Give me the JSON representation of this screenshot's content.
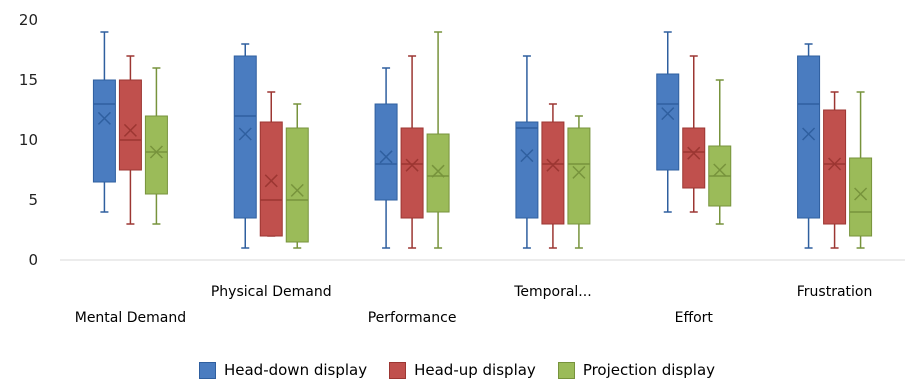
{
  "chart_data": {
    "type": "box",
    "categories": [
      "Mental Demand",
      "Physical Demand",
      "Performance",
      "Temporal...",
      "Effort",
      "Frustration"
    ],
    "ylim": [
      0,
      20
    ],
    "yticks": [
      0,
      5,
      10,
      15,
      20
    ],
    "grid": false,
    "legend_position": "bottom",
    "series": [
      {
        "name": "Head-down display",
        "color": "#4a7cc0",
        "stroke": "#2f5f9f",
        "boxes": [
          {
            "min": 4,
            "q1": 6.5,
            "median": 13,
            "q3": 15,
            "max": 19,
            "mean": 11.8
          },
          {
            "min": 1,
            "q1": 3.5,
            "median": 12,
            "q3": 17,
            "max": 18,
            "mean": 10.5
          },
          {
            "min": 1,
            "q1": 5,
            "median": 8,
            "q3": 13,
            "max": 16,
            "mean": 8.6
          },
          {
            "min": 1,
            "q1": 3.5,
            "median": 11,
            "q3": 11.5,
            "max": 17,
            "mean": 8.7
          },
          {
            "min": 4,
            "q1": 7.5,
            "median": 13,
            "q3": 15.5,
            "max": 19,
            "mean": 12.2
          },
          {
            "min": 1,
            "q1": 3.5,
            "median": 13,
            "q3": 17,
            "max": 18,
            "mean": 10.5
          }
        ]
      },
      {
        "name": "Head-up display",
        "color": "#c0504d",
        "stroke": "#9c3632",
        "boxes": [
          {
            "min": 3,
            "q1": 7.5,
            "median": 10,
            "q3": 15,
            "max": 17,
            "mean": 10.8
          },
          {
            "min": 2,
            "q1": 2,
            "median": 5,
            "q3": 11.5,
            "max": 14,
            "mean": 6.6
          },
          {
            "min": 1,
            "q1": 3.5,
            "median": 8,
            "q3": 11,
            "max": 17,
            "mean": 7.9
          },
          {
            "min": 1,
            "q1": 3,
            "median": 8,
            "q3": 11.5,
            "max": 13,
            "mean": 7.9
          },
          {
            "min": 4,
            "q1": 6,
            "median": 9,
            "q3": 11,
            "max": 17,
            "mean": 8.9
          },
          {
            "min": 1,
            "q1": 3,
            "median": 8,
            "q3": 12.5,
            "max": 14,
            "mean": 8.0
          }
        ]
      },
      {
        "name": "Projection display",
        "color": "#9bbb59",
        "stroke": "#77933c",
        "boxes": [
          {
            "min": 3,
            "q1": 5.5,
            "median": 9,
            "q3": 12,
            "max": 16,
            "mean": 9.0
          },
          {
            "min": 1,
            "q1": 1.5,
            "median": 5,
            "q3": 11,
            "max": 13,
            "mean": 5.8
          },
          {
            "min": 1,
            "q1": 4,
            "median": 7,
            "q3": 10.5,
            "max": 19,
            "mean": 7.4
          },
          {
            "min": 1,
            "q1": 3,
            "median": 8,
            "q3": 11,
            "max": 12,
            "mean": 7.3
          },
          {
            "min": 3,
            "q1": 4.5,
            "median": 7,
            "q3": 9.5,
            "max": 15,
            "mean": 7.5
          },
          {
            "min": 1,
            "q1": 2,
            "median": 4,
            "q3": 8.5,
            "max": 14,
            "mean": 5.5
          }
        ]
      }
    ]
  }
}
